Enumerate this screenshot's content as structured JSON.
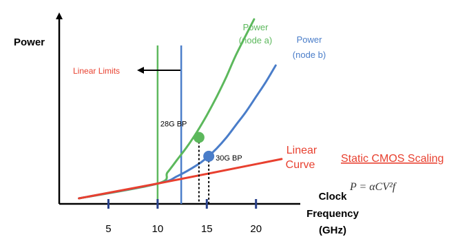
{
  "chart_data": {
    "type": "line",
    "ylabel": "Power",
    "xlabel_lines": [
      "Clock",
      "Frequency",
      "(GHz)"
    ],
    "xticks": [
      5,
      10,
      15,
      20
    ],
    "xlim": [
      0,
      24.5
    ],
    "ylim": [
      0,
      100
    ],
    "grid": false,
    "series": [
      {
        "name_lines": [
          "Power",
          "(node a)"
        ],
        "color": "#5cb85c",
        "x": [
          2,
          10,
          11,
          12,
          13,
          14,
          15,
          16,
          17,
          18,
          19.8
        ],
        "y": [
          3,
          11,
          17,
          24,
          31,
          39,
          48,
          58,
          69,
          81,
          100
        ]
      },
      {
        "name_lines": [
          "Power",
          "(node b)"
        ],
        "color": "#4a7dc9",
        "x": [
          2,
          10,
          12,
          14,
          15,
          16,
          17,
          18,
          19,
          20,
          21,
          22
        ],
        "y": [
          3,
          11,
          15,
          21,
          25,
          30,
          36,
          43,
          50,
          58,
          66,
          75
        ]
      },
      {
        "name_lines": [
          "Linear",
          "Curve"
        ],
        "color": "#e8402f",
        "x": [
          2,
          10,
          22.6
        ],
        "y": [
          3,
          11,
          24.3
        ]
      }
    ],
    "vertical_lines": [
      {
        "x": 10,
        "color": "#5cb85c"
      },
      {
        "x": 12.4,
        "color": "#4a7dc9"
      }
    ],
    "points": [
      {
        "label": "28G BP",
        "x": 14.2,
        "y": 36,
        "color": "#5cb85c"
      },
      {
        "label": "30G BP",
        "x": 15.2,
        "y": 25.8,
        "color": "#4a7dc9"
      }
    ],
    "annotations": {
      "linear_limits": "Linear Limits",
      "static_cmos": "Static CMOS Scaling",
      "equation": "P = αCV²f"
    }
  }
}
